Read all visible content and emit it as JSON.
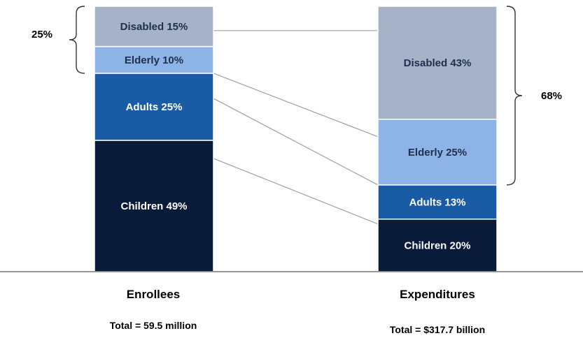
{
  "colors": {
    "disabled": "#a5b2c7",
    "elderly": "#8eb3e6",
    "adults": "#1a5ba6",
    "children": "#0a1b3a",
    "label_dark": "#1f2f4f",
    "label_light": "#ffffff",
    "connector": "#9aa0a8",
    "baseline": "#777777"
  },
  "chart_data": {
    "type": "bar",
    "stacked": true,
    "percent": true,
    "categories": [
      "Enrollees",
      "Expenditures"
    ],
    "totals": [
      "Total = 59.5 million",
      "Total = $317.7 billion"
    ],
    "series": [
      {
        "key": "children",
        "values": [
          49,
          20
        ],
        "labels": [
          "Children 49%",
          "Children 20%"
        ]
      },
      {
        "key": "adults",
        "values": [
          25,
          13
        ],
        "labels": [
          "Adults 25%",
          "Adults 13%"
        ]
      },
      {
        "key": "elderly",
        "values": [
          10,
          25
        ],
        "labels": [
          "Elderly 10%",
          "Elderly 25%"
        ]
      },
      {
        "key": "disabled",
        "values": [
          15,
          43
        ],
        "labels": [
          "Disabled 15%",
          "Disabled 43%"
        ]
      }
    ],
    "brackets": [
      {
        "bar": 0,
        "series": [
          "elderly",
          "disabled"
        ],
        "label": "25%",
        "side": "left"
      },
      {
        "bar": 1,
        "series": [
          "elderly",
          "disabled"
        ],
        "label": "68%",
        "side": "right"
      }
    ]
  }
}
